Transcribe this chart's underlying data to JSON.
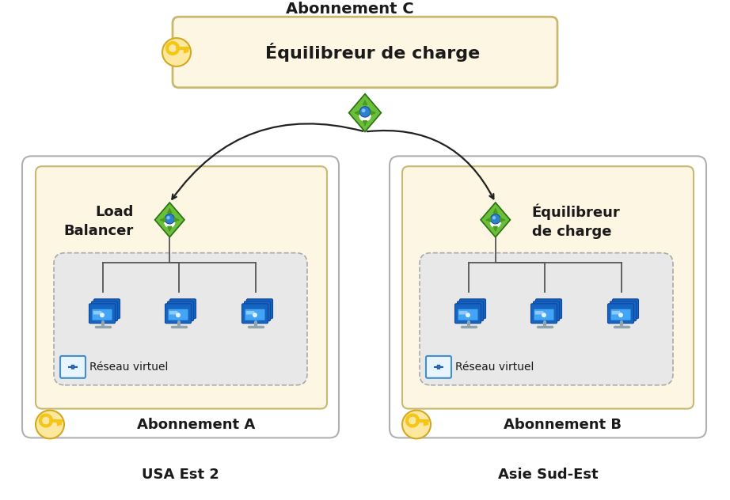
{
  "bg_color": "#ffffff",
  "box_fill_yellow": "#fdf6e3",
  "box_stroke_yellow": "#c8b870",
  "vnet_fill": "#e8e8e8",
  "vnet_stroke": "#aaaaaa",
  "text_color": "#1a1a1a",
  "arrow_color": "#222222",
  "sub_c_label": "Abonnement C",
  "sub_c_eq_label": "Équilibreur de charge",
  "sub_a_label": "Abonnement A",
  "sub_a_lb_label": "Load\nBalancer",
  "sub_a_vnet_label": "Réseau virtuel",
  "sub_b_label": "Abonnement B",
  "sub_b_eq_label": "Équilibreur\nde charge",
  "sub_b_vnet_label": "Réseau virtuel",
  "region_a_label": "USA Est 2",
  "region_b_label": "Asie Sud-Est",
  "diamond_green1": "#6abf3a",
  "diamond_green2": "#4a9a20",
  "diamond_dark": "#2a7010",
  "key_fill": "#f5c518",
  "key_oval_fill": "#fde8a0",
  "key_oval_stroke": "#d4a820"
}
